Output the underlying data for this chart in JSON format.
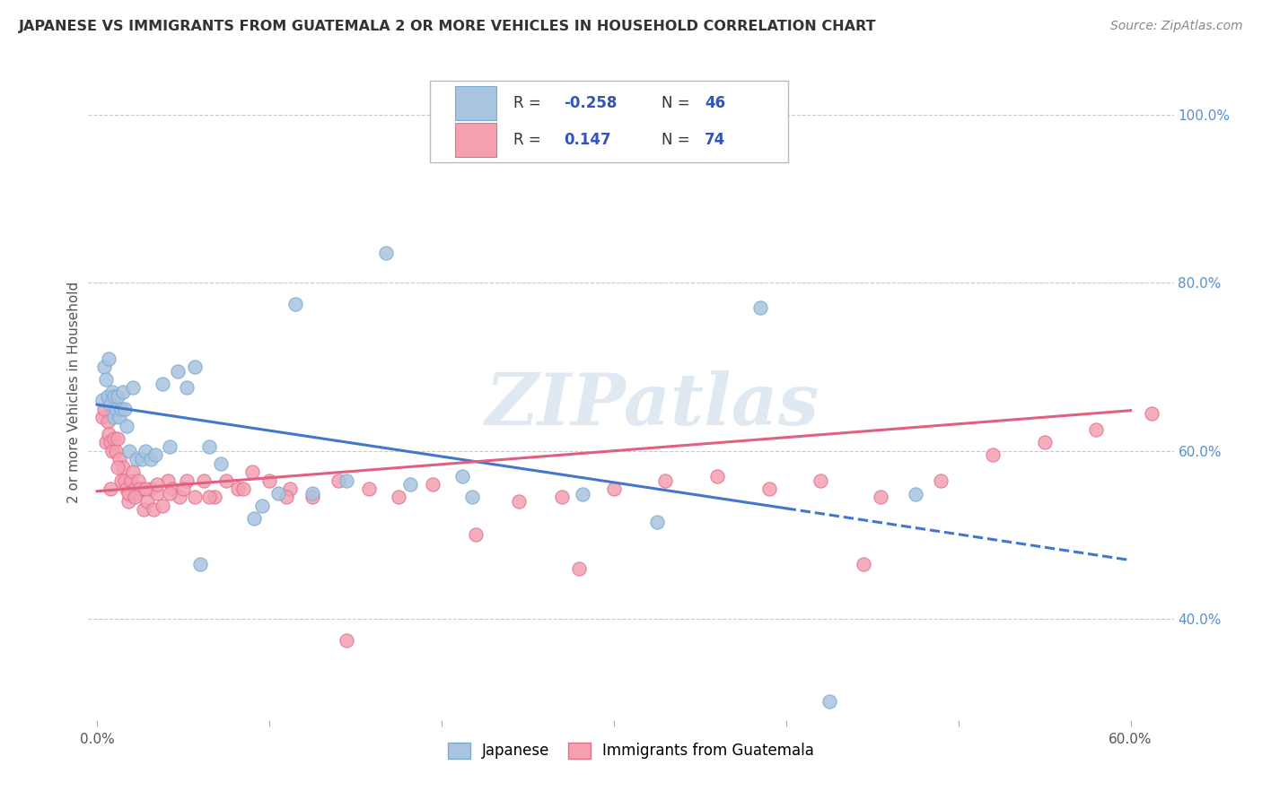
{
  "title": "JAPANESE VS IMMIGRANTS FROM GUATEMALA 2 OR MORE VEHICLES IN HOUSEHOLD CORRELATION CHART",
  "source": "Source: ZipAtlas.com",
  "ylabel": "2 or more Vehicles in Household",
  "xlim": [
    -0.005,
    0.625
  ],
  "ylim": [
    0.28,
    1.06
  ],
  "xticks": [
    0.0,
    0.1,
    0.2,
    0.3,
    0.4,
    0.5,
    0.6
  ],
  "xtick_labels": [
    "0.0%",
    "",
    "",
    "",
    "",
    "",
    "60.0%"
  ],
  "ytick_vals": [
    0.4,
    0.6,
    0.8,
    1.0
  ],
  "ytick_labels": [
    "40.0%",
    "60.0%",
    "80.0%",
    "100.0%"
  ],
  "watermark": "ZIPatlas",
  "legend_label1": "Japanese",
  "legend_label2": "Immigrants from Guatemala",
  "R1": -0.258,
  "N1": 46,
  "R2": 0.147,
  "N2": 74,
  "color1": "#a8c4e0",
  "color1_edge": "#7aaad0",
  "color2": "#f4a0b0",
  "color2_edge": "#e07090",
  "trendline1_color": "#4477cc",
  "trendline2_color": "#e06080",
  "trendline1_x": [
    0.0,
    0.6
  ],
  "trendline1_y": [
    0.655,
    0.47
  ],
  "trendline1_solid_end": 0.4,
  "trendline2_x": [
    0.0,
    0.6
  ],
  "trendline2_y": [
    0.552,
    0.648
  ],
  "scatter1_x": [
    0.003,
    0.004,
    0.005,
    0.006,
    0.007,
    0.008,
    0.009,
    0.01,
    0.01,
    0.011,
    0.012,
    0.013,
    0.014,
    0.015,
    0.016,
    0.017,
    0.019,
    0.021,
    0.023,
    0.026,
    0.028,
    0.031,
    0.034,
    0.038,
    0.042,
    0.047,
    0.052,
    0.057,
    0.06,
    0.065,
    0.072,
    0.091,
    0.096,
    0.105,
    0.115,
    0.125,
    0.145,
    0.168,
    0.182,
    0.212,
    0.218,
    0.282,
    0.325,
    0.385,
    0.425,
    0.475
  ],
  "scatter1_y": [
    0.66,
    0.7,
    0.685,
    0.665,
    0.71,
    0.655,
    0.67,
    0.665,
    0.64,
    0.65,
    0.665,
    0.64,
    0.65,
    0.67,
    0.65,
    0.63,
    0.6,
    0.675,
    0.59,
    0.59,
    0.6,
    0.59,
    0.595,
    0.68,
    0.605,
    0.695,
    0.675,
    0.7,
    0.465,
    0.605,
    0.585,
    0.52,
    0.535,
    0.55,
    0.775,
    0.55,
    0.565,
    0.835,
    0.56,
    0.57,
    0.545,
    0.548,
    0.515,
    0.77,
    0.302,
    0.548
  ],
  "scatter2_x": [
    0.003,
    0.004,
    0.005,
    0.006,
    0.007,
    0.008,
    0.009,
    0.01,
    0.011,
    0.012,
    0.013,
    0.014,
    0.015,
    0.016,
    0.017,
    0.018,
    0.019,
    0.02,
    0.021,
    0.022,
    0.023,
    0.024,
    0.025,
    0.027,
    0.029,
    0.031,
    0.033,
    0.035,
    0.038,
    0.041,
    0.044,
    0.048,
    0.052,
    0.057,
    0.062,
    0.068,
    0.075,
    0.082,
    0.09,
    0.1,
    0.112,
    0.125,
    0.14,
    0.158,
    0.175,
    0.195,
    0.22,
    0.245,
    0.27,
    0.3,
    0.33,
    0.36,
    0.39,
    0.42,
    0.455,
    0.49,
    0.52,
    0.55,
    0.58,
    0.612,
    0.008,
    0.012,
    0.018,
    0.022,
    0.028,
    0.035,
    0.042,
    0.05,
    0.065,
    0.085,
    0.11,
    0.145,
    0.28,
    0.445
  ],
  "scatter2_y": [
    0.64,
    0.65,
    0.61,
    0.635,
    0.62,
    0.61,
    0.6,
    0.615,
    0.6,
    0.615,
    0.59,
    0.565,
    0.58,
    0.565,
    0.555,
    0.54,
    0.55,
    0.565,
    0.575,
    0.555,
    0.55,
    0.565,
    0.555,
    0.53,
    0.54,
    0.555,
    0.53,
    0.55,
    0.535,
    0.565,
    0.555,
    0.545,
    0.565,
    0.545,
    0.565,
    0.545,
    0.565,
    0.555,
    0.575,
    0.565,
    0.555,
    0.545,
    0.565,
    0.555,
    0.545,
    0.56,
    0.5,
    0.54,
    0.545,
    0.555,
    0.565,
    0.57,
    0.555,
    0.565,
    0.545,
    0.565,
    0.595,
    0.61,
    0.625,
    0.645,
    0.555,
    0.58,
    0.55,
    0.545,
    0.555,
    0.56,
    0.55,
    0.555,
    0.545,
    0.555,
    0.545,
    0.375,
    0.46,
    0.465
  ]
}
